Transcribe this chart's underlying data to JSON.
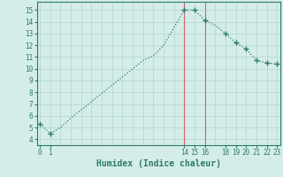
{
  "x": [
    0,
    1,
    2,
    3,
    4,
    5,
    6,
    7,
    8,
    9,
    10,
    11,
    12,
    13,
    14,
    15,
    16,
    17,
    18,
    19,
    20,
    21,
    22,
    23
  ],
  "y": [
    5.3,
    4.5,
    5.0,
    5.8,
    6.5,
    7.2,
    7.9,
    8.6,
    9.3,
    10.0,
    10.7,
    11.1,
    12.0,
    13.5,
    15.0,
    15.0,
    14.1,
    13.7,
    13.0,
    12.2,
    11.7,
    10.7,
    10.5,
    10.4
  ],
  "markers_x": [
    0,
    1,
    14,
    15,
    16,
    18,
    19,
    20,
    21,
    22,
    23
  ],
  "markers_y": [
    5.3,
    4.5,
    15.0,
    15.0,
    14.1,
    13.0,
    12.2,
    11.7,
    10.7,
    10.5,
    10.4
  ],
  "line_color": "#2d7a68",
  "marker_color": "#2d7a68",
  "bg_color": "#d4edea",
  "grid_color": "#b8d8d4",
  "grid_color_red": "#e8a0a0",
  "axis_color": "#2d7a68",
  "xlabel": "Humidex (Indice chaleur)",
  "ylabel": "",
  "xticks": [
    0,
    1,
    14,
    15,
    16,
    18,
    19,
    20,
    21,
    22,
    23
  ],
  "yticks": [
    4,
    5,
    6,
    7,
    8,
    9,
    10,
    11,
    12,
    13,
    14,
    15
  ],
  "all_xticks": [
    0,
    1,
    2,
    3,
    4,
    5,
    6,
    7,
    8,
    9,
    10,
    11,
    12,
    13,
    14,
    15,
    16,
    17,
    18,
    19,
    20,
    21,
    22,
    23
  ],
  "xlim": [
    -0.3,
    23.3
  ],
  "ylim": [
    3.5,
    15.7
  ],
  "vline_x": [
    14,
    16
  ],
  "vline_color": "#cc6666"
}
